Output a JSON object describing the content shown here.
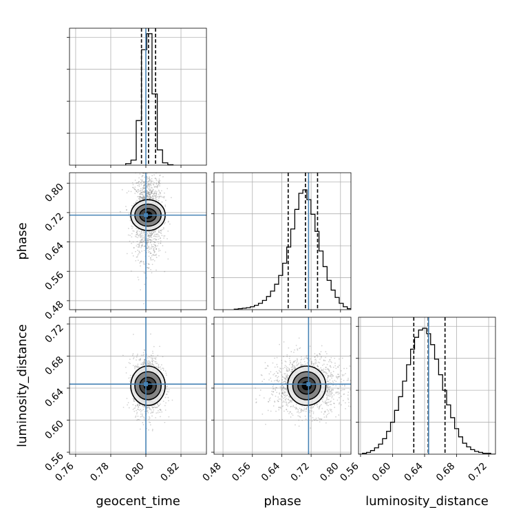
{
  "chart_data": {
    "type": "corner",
    "parameters": [
      "geocent_time",
      "phase",
      "luminosity_distance"
    ],
    "axis_labels": {
      "geocent_time": "geocent_time",
      "phase": "phase",
      "luminosity_distance": "luminosity_distance"
    },
    "ranges": {
      "geocent_time": [
        0.7565,
        0.8345
      ],
      "phase": [
        0.4555,
        0.8285
      ],
      "luminosity_distance": [
        0.5575,
        0.7285
      ]
    },
    "ticks": {
      "geocent_time": [
        "0.76",
        "0.78",
        "0.80",
        "0.82"
      ],
      "phase": [
        "0.48",
        "0.56",
        "0.64",
        "0.72",
        "0.80"
      ],
      "luminosity_distance": [
        "0.56",
        "0.60",
        "0.64",
        "0.68",
        "0.72"
      ]
    },
    "truths": {
      "geocent_time": 0.8,
      "phase": 0.713,
      "luminosity_distance": 0.645
    },
    "quantile_lines": {
      "geocent_time": [
        0.7975,
        0.8015,
        0.8055
      ],
      "phase": [
        0.6575,
        0.7045,
        0.7375
      ],
      "luminosity_distance": [
        0.6265,
        0.6445,
        0.6655
      ]
    },
    "histograms": {
      "geocent_time": {
        "bin_edges": [
          0.7885,
          0.7915,
          0.7945,
          0.7975,
          0.8005,
          0.8035,
          0.8065,
          0.8095,
          0.8125,
          0.8155
        ],
        "counts": [
          4,
          13,
          114,
          295,
          336,
          182,
          39,
          6,
          1
        ],
        "ymax": 350
      },
      "phase": {
        "bin_edges": [
          0.5105,
          0.5215,
          0.5325,
          0.5435,
          0.5545,
          0.5655,
          0.5765,
          0.5875,
          0.5985,
          0.6095,
          0.6205,
          0.6315,
          0.6425,
          0.6535,
          0.6645,
          0.6755,
          0.6865,
          0.6975,
          0.7085,
          0.7195,
          0.7305,
          0.7415,
          0.7525,
          0.7635,
          0.7745,
          0.7855,
          0.7965,
          0.8075,
          0.8185,
          0.8285
        ],
        "counts": [
          1,
          2,
          3,
          4,
          6,
          9,
          13,
          19,
          27,
          38,
          52,
          70,
          95,
          128,
          165,
          205,
          238,
          245,
          225,
          195,
          160,
          120,
          88,
          60,
          40,
          25,
          13,
          6,
          2
        ],
        "ymax": 280
      },
      "luminosity_distance": {
        "bin_edges": [
          0.5575,
          0.5625,
          0.5675,
          0.5725,
          0.5775,
          0.5825,
          0.5875,
          0.5925,
          0.5975,
          0.6025,
          0.6075,
          0.6125,
          0.6175,
          0.6225,
          0.6275,
          0.6325,
          0.6375,
          0.6425,
          0.6475,
          0.6525,
          0.6575,
          0.6625,
          0.6675,
          0.6725,
          0.6775,
          0.6825,
          0.6875,
          0.6925,
          0.6975,
          0.7025,
          0.7075,
          0.7125,
          0.7175,
          0.7225,
          0.7285
        ],
        "counts": [
          0,
          1,
          2,
          4,
          7,
          11,
          17,
          25,
          35,
          48,
          63,
          80,
          98,
          115,
          128,
          136,
          138,
          132,
          120,
          104,
          87,
          70,
          54,
          40,
          28,
          19,
          12,
          8,
          5,
          3,
          2,
          1,
          1,
          0
        ],
        "ymax": 150
      }
    },
    "joint_2d": [
      {
        "x": "geocent_time",
        "y": "phase",
        "center": [
          0.8012,
          0.713
        ],
        "contour_sigmas": [
          [
            0.0022,
            0.0085
          ],
          [
            0.0047,
            0.018
          ],
          [
            0.0075,
            0.03
          ],
          [
            0.0098,
            0.042
          ]
        ],
        "scatter_sigma": [
          0.0042,
          0.06
        ]
      },
      {
        "x": "geocent_time",
        "y": "luminosity_distance",
        "center": [
          0.8012,
          0.643
        ],
        "contour_sigmas": [
          [
            0.0022,
            0.005
          ],
          [
            0.0047,
            0.0105
          ],
          [
            0.0075,
            0.0175
          ],
          [
            0.0098,
            0.0245
          ]
        ],
        "scatter_sigma": [
          0.0042,
          0.018
        ]
      },
      {
        "x": "phase",
        "y": "luminosity_distance",
        "center": [
          0.708,
          0.643
        ],
        "contour_sigmas": [
          [
            0.012,
            0.005
          ],
          [
            0.024,
            0.0105
          ],
          [
            0.038,
            0.0175
          ],
          [
            0.052,
            0.0245
          ]
        ],
        "scatter_sigma": [
          0.05,
          0.018
        ]
      }
    ],
    "contour_levels": [
      "level-1",
      "level-2",
      "level-3",
      "level-4"
    ],
    "colors": {
      "truth": "#4682b4",
      "hist": "#000000",
      "scatter": "#7f7f7f",
      "contour_fills": [
        "#000000",
        "#3d3d3d",
        "#7a7a7a",
        "#e6e6e6"
      ]
    },
    "grid": true,
    "diagonal": "1d-histograms",
    "off_diagonal": "2d-density-contours"
  }
}
